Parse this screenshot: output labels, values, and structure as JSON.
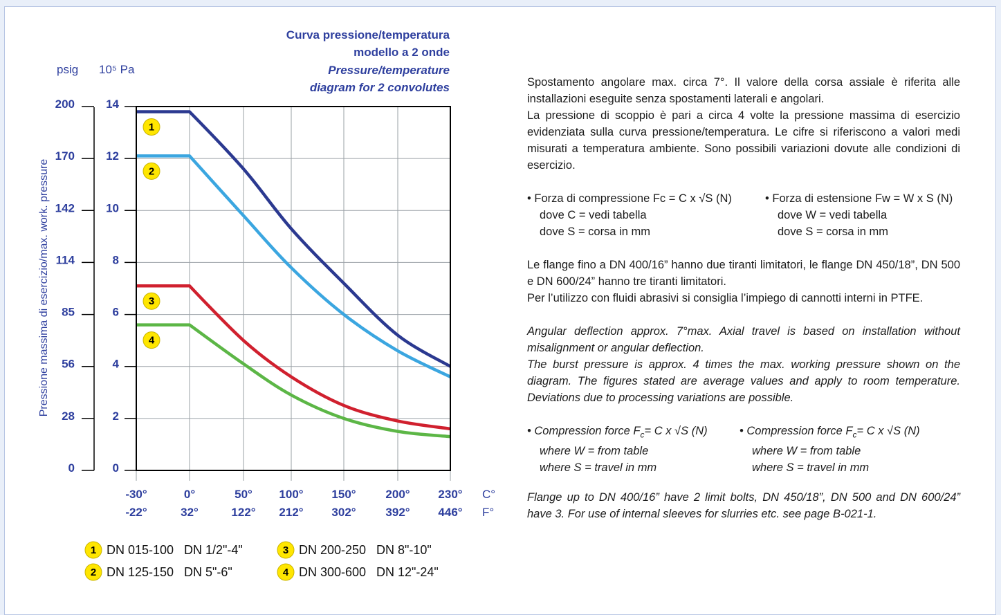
{
  "chart_data": {
    "type": "line",
    "title": [
      "Curva pressione/temperatura",
      "modello a 2 onde",
      "Pressure/temperature",
      "diagram for 2 convolutes"
    ],
    "ylabel": "Pressione massima di esercizio/max. work. pressure",
    "y_units": [
      "psig",
      "10⁵ Pa"
    ],
    "psig_ticks": [
      "0",
      "28",
      "56",
      "85",
      "114",
      "142",
      "170",
      "200"
    ],
    "pa_ticks": [
      "0",
      "2",
      "4",
      "6",
      "8",
      "10",
      "12",
      "14"
    ],
    "x_unit_c": "C°",
    "x_unit_f": "F°",
    "x_ticks_c": [
      "-30°",
      "0°",
      "50°",
      "100°",
      "150°",
      "200°",
      "230°"
    ],
    "x_ticks_f": [
      "-22°",
      "32°",
      "122°",
      "212°",
      "302°",
      "392°",
      "446°"
    ],
    "xlim": [
      -30,
      230
    ],
    "ylim": [
      0,
      14
    ],
    "grid": true,
    "series": [
      {
        "label": "1",
        "color": "#2b3990",
        "x": [
          -30,
          0,
          50,
          100,
          150,
          200,
          230
        ],
        "y": [
          13.8,
          13.8,
          11.6,
          9.3,
          7.2,
          5.2,
          4.0
        ]
      },
      {
        "label": "2",
        "color": "#3ba6e0",
        "x": [
          -30,
          0,
          50,
          100,
          150,
          200,
          230
        ],
        "y": [
          12.1,
          12.1,
          9.8,
          7.8,
          6.0,
          4.6,
          3.6
        ]
      },
      {
        "label": "3",
        "color": "#d0202e",
        "x": [
          -30,
          0,
          50,
          100,
          150,
          200,
          230
        ],
        "y": [
          7.1,
          7.1,
          5.0,
          3.6,
          2.5,
          1.9,
          1.6
        ]
      },
      {
        "label": "4",
        "color": "#5cb646",
        "x": [
          -30,
          0,
          50,
          100,
          150,
          200,
          230
        ],
        "y": [
          5.6,
          5.6,
          4.1,
          2.9,
          2.0,
          1.5,
          1.3
        ]
      }
    ],
    "legend": [
      {
        "num": "1",
        "dn": "DN 015-100",
        "inch": "DN 1/2\"-4\""
      },
      {
        "num": "2",
        "dn": "DN 125-150",
        "inch": "DN 5\"-6\""
      },
      {
        "num": "3",
        "dn": "DN 200-250",
        "inch": "DN 8\"-10\""
      },
      {
        "num": "4",
        "dn": "DN 300-600",
        "inch": "DN 12\"-24\""
      }
    ]
  },
  "text": {
    "it_para1": "Spostamento angolare max. circa 7°. Il valore della corsa assiale è riferita alle installazioni eseguite senza spostamenti laterali e angolari.",
    "it_para2": "La pressione di scoppio è pari a circa 4 volte la pressione massima di esercizio evidenziata sulla curva pressione/temperatura. Le cifre si riferiscono a valori medi misurati a temperatura ambiente. Sono possibili variazioni dovute alle condizioni di esercizio.",
    "it_b1_l1": "• Forza di compressione Fc = C x √S (N)",
    "it_b1_l2": "dove C = vedi tabella",
    "it_b1_l3": "dove S = corsa in mm",
    "it_b2_l1": "• Forza di estensione Fw = W x S (N)",
    "it_b2_l2": "dove W = vedi tabella",
    "it_b2_l3": "dove S = corsa in mm",
    "it_para3": "Le flange fino a DN 400/16” hanno due tiranti limitatori, le flange DN 450/18”, DN 500 e DN 600/24” hanno tre tiranti limitatori.",
    "it_para4": "Per l’utilizzo con fluidi abrasivi si consiglia l’impiego di cannotti interni in PTFE.",
    "en_para1": "Angular deflection approx. 7°max. Axial travel is based on installation without misalignment or angular deflection.",
    "en_para2": "The burst pressure is approx. 4 times the max. working pressure shown on the diagram. The figures stated are average values and apply to room temperature. Deviations due to processing variations are possible.",
    "en_b1_pre": "• Compression force F",
    "en_b1_sub": "c",
    "en_b1_post": "= C x √S (N)",
    "en_b1_l2": "where W = from table",
    "en_b1_l3": "where S = travel in mm",
    "en_b2_pre": "• Compression force F",
    "en_b2_sub": "c",
    "en_b2_post": "= C x √S (N)",
    "en_b2_l2": "where W = from table",
    "en_b2_l3": "where S = travel in mm",
    "en_para3": "Flange up to DN 400/16” have 2 limit bolts, DN 450/18”, DN 500 and DN 600/24” have 3. For use of internal sleeves for slurries etc. see page B-021-1."
  }
}
